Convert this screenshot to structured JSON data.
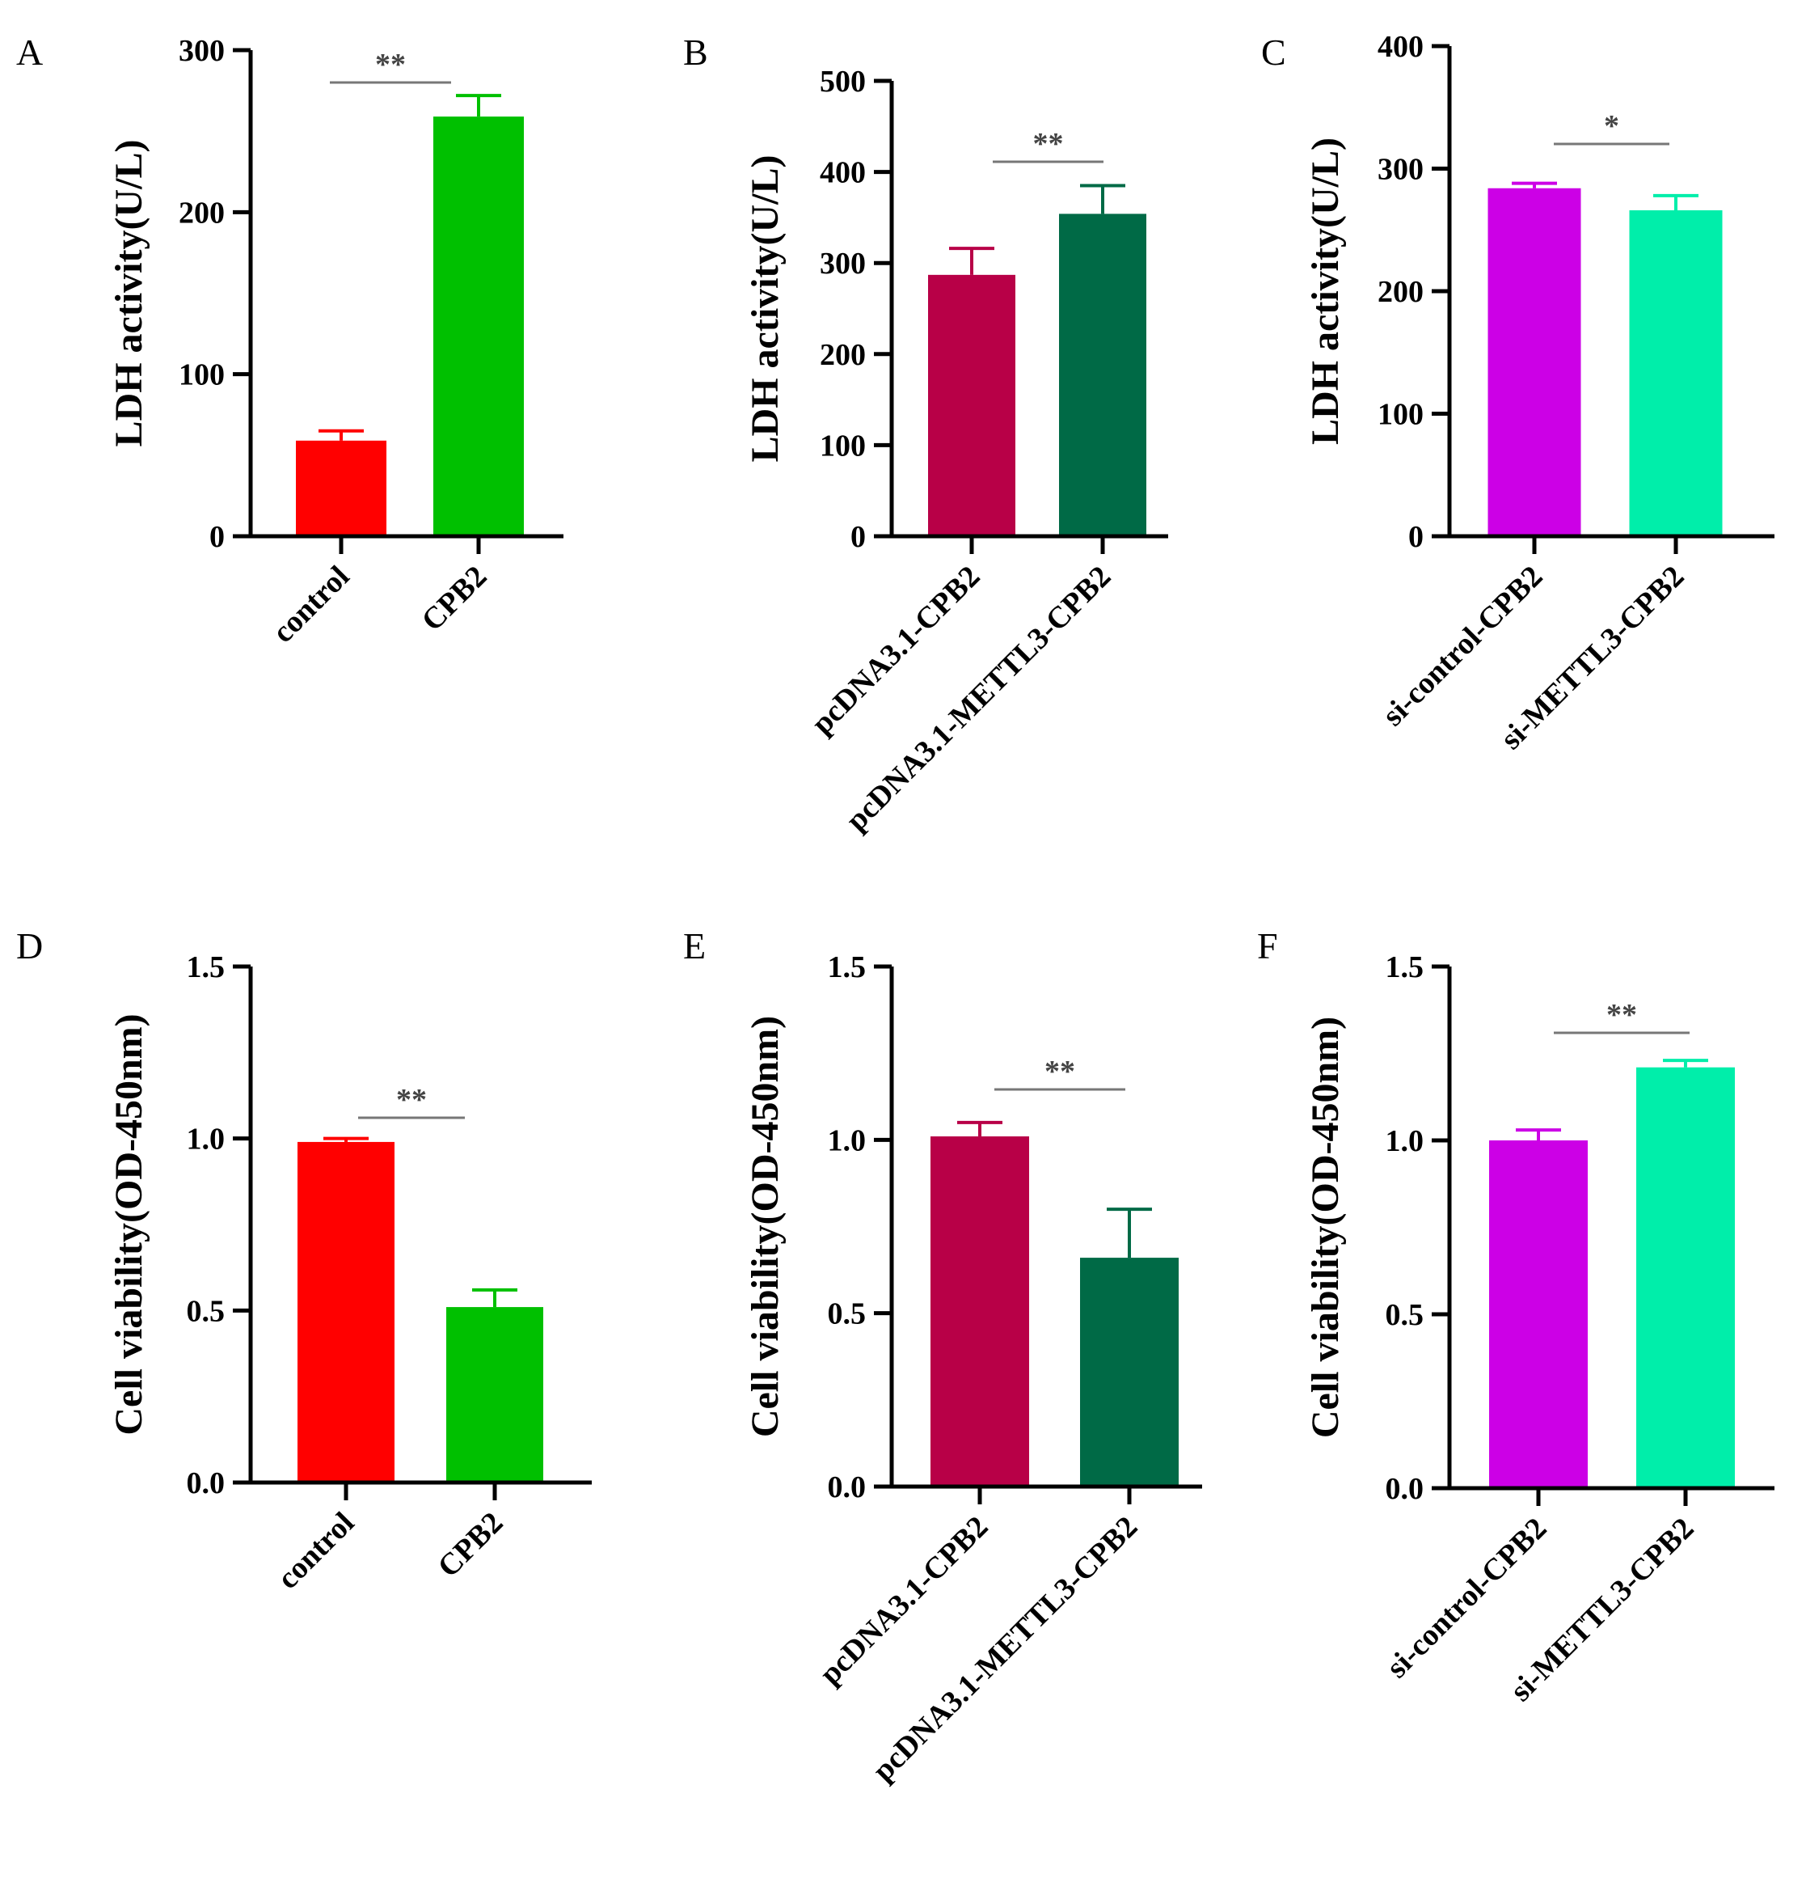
{
  "chart_data": [
    {
      "panel": "A",
      "type": "bar",
      "ylabel": "LDH activity(U/L)",
      "ylim": [
        0,
        300
      ],
      "yticks": [
        "0",
        "100",
        "200",
        "300"
      ],
      "categories": [
        "control",
        "CPB2"
      ],
      "values": [
        59,
        259
      ],
      "errors": [
        6,
        13
      ],
      "colors": [
        "#ff0000",
        "#00c000"
      ],
      "significance": "**"
    },
    {
      "panel": "B",
      "type": "bar",
      "ylabel": "LDH activity(U/L)",
      "ylim": [
        0,
        500
      ],
      "yticks": [
        "0",
        "100",
        "200",
        "300",
        "400",
        "500"
      ],
      "categories": [
        "pcDNA3.1-CPB2",
        "pcDNA3.1-METTL3-CPB2"
      ],
      "values": [
        287,
        354
      ],
      "errors": [
        29,
        31
      ],
      "colors": [
        "#b80047",
        "#006a46"
      ],
      "significance": "**"
    },
    {
      "panel": "C",
      "type": "bar",
      "ylabel": "LDH activity(U/L)",
      "ylim": [
        0,
        400
      ],
      "yticks": [
        "0",
        "100",
        "200",
        "300",
        "400"
      ],
      "categories": [
        "si-control-CPB2",
        "si-METTL3-CPB2"
      ],
      "values": [
        284,
        266
      ],
      "errors": [
        4,
        12
      ],
      "colors": [
        "#cc00e6",
        "#00eeaa"
      ],
      "significance": "*"
    },
    {
      "panel": "D",
      "type": "bar",
      "ylabel": "Cell viability(OD-450nm)",
      "ylim": [
        0,
        1.5
      ],
      "yticks": [
        "0.0",
        "0.5",
        "1.0",
        "1.5"
      ],
      "categories": [
        "control",
        "CPB2"
      ],
      "values": [
        0.99,
        0.51
      ],
      "errors": [
        0.01,
        0.05
      ],
      "colors": [
        "#ff0000",
        "#00c000"
      ],
      "significance": "**"
    },
    {
      "panel": "E",
      "type": "bar",
      "ylabel": "Cell viability(OD-450nm)",
      "ylim": [
        0,
        1.5
      ],
      "yticks": [
        "0.0",
        "0.5",
        "1.0",
        "1.5"
      ],
      "categories": [
        "pcDNA3.1-CPB2",
        "pcDNA3.1-METTL3-CPB2"
      ],
      "values": [
        1.01,
        0.66
      ],
      "errors": [
        0.04,
        0.14
      ],
      "colors": [
        "#b80047",
        "#006a46"
      ],
      "significance": "**"
    },
    {
      "panel": "F",
      "type": "bar",
      "ylabel": "Cell viability(OD-450nm)",
      "ylim": [
        0,
        1.5
      ],
      "yticks": [
        "0.0",
        "0.5",
        "1.0",
        "1.5"
      ],
      "categories": [
        "si-control-CPB2",
        "si-METTL3-CPB2"
      ],
      "values": [
        1.0,
        1.21
      ],
      "errors": [
        0.03,
        0.02
      ],
      "colors": [
        "#cc00e6",
        "#00eeaa"
      ],
      "significance": "**"
    }
  ]
}
